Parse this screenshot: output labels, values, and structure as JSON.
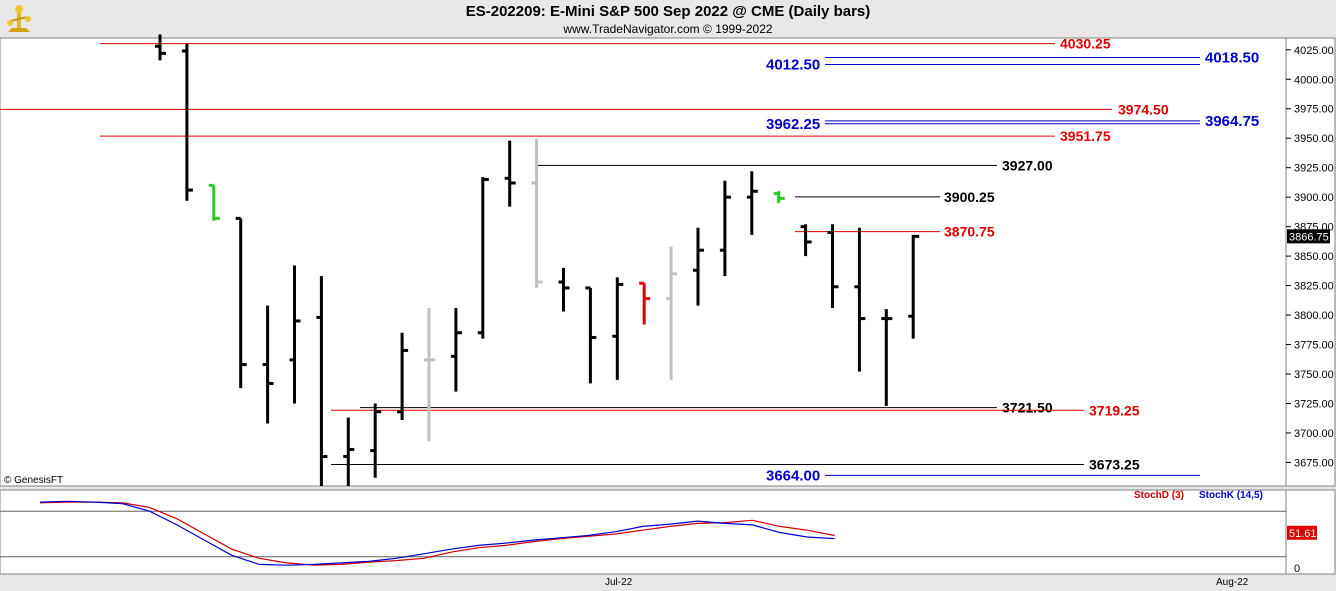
{
  "header": {
    "title": "ES-202209:  E-Mini S&P 500 Sep 2022 @ CME  (Daily bars)",
    "subtitle": "www.TradeNavigator.com © 1999-2022"
  },
  "watermark": "© GenesisFT",
  "colors": {
    "bar_default": "#000000",
    "bar_inside": "#c0c0c0",
    "bar_up_signal": "#22cc22",
    "bar_down_signal": "#dd0000",
    "level_red": "#dd0000",
    "level_blue": "#0000cc",
    "level_black": "#000000",
    "stoch_d": "#cc0000",
    "stoch_k": "#0000cc",
    "last_price_box": "#000000",
    "stoch_value_box": "#dd0000"
  },
  "chart_data": [
    {
      "type": "ohlc",
      "title": "ES-202209:  E-Mini S&P 500 Sep 2022 @ CME  (Daily bars)",
      "x_ticks": [
        "Jul-22",
        "Aug-22"
      ],
      "ylim": [
        3655,
        4035
      ],
      "y_ticks": [
        "3675.00",
        "3700.00",
        "3725.00",
        "3750.00",
        "3775.00",
        "3800.00",
        "3825.00",
        "3850.00",
        "3875.00",
        "3900.00",
        "3925.00",
        "3950.00",
        "3975.00",
        "4000.00",
        "4025.00"
      ],
      "last_price": "3866.75",
      "bars": [
        {
          "o": 4028.0,
          "h": 4038.0,
          "l": 4016.0,
          "c": 4022.0,
          "color": "black"
        },
        {
          "o": 4024.0,
          "h": 4030.0,
          "l": 3897.0,
          "c": 3906.0,
          "color": "black"
        },
        {
          "o": 3910.0,
          "h": 3910.0,
          "l": 3880.0,
          "c": 3882.0,
          "color": "green"
        },
        {
          "o": 3882.0,
          "h": 3882.0,
          "l": 3738.0,
          "c": 3758.0,
          "color": "black"
        },
        {
          "o": 3758.0,
          "h": 3808.0,
          "l": 3708.0,
          "c": 3742.0,
          "color": "black"
        },
        {
          "o": 3762.0,
          "h": 3842.0,
          "l": 3725.0,
          "c": 3795.0,
          "color": "black"
        },
        {
          "o": 3798.0,
          "h": 3833.0,
          "l": 3655.0,
          "c": 3680.0,
          "color": "black"
        },
        {
          "o": 3680.0,
          "h": 3713.0,
          "l": 3655.0,
          "c": 3686.0,
          "color": "black"
        },
        {
          "o": 3685.0,
          "h": 3725.0,
          "l": 3662.0,
          "c": 3718.0,
          "color": "black"
        },
        {
          "o": 3718.0,
          "h": 3785.0,
          "l": 3711.0,
          "c": 3770.0,
          "color": "black"
        },
        {
          "o": 3762.0,
          "h": 3806.0,
          "l": 3693.0,
          "c": 3762.0,
          "color": "gray"
        },
        {
          "o": 3765.0,
          "h": 3806.0,
          "l": 3735.0,
          "c": 3785.0,
          "color": "black"
        },
        {
          "o": 3785.0,
          "h": 3917.0,
          "l": 3780.0,
          "c": 3915.0,
          "color": "black"
        },
        {
          "o": 3916.0,
          "h": 3948.0,
          "l": 3892.0,
          "c": 3912.0,
          "color": "black"
        },
        {
          "o": 3912.0,
          "h": 3950.0,
          "l": 3823.0,
          "c": 3828.0,
          "color": "gray"
        },
        {
          "o": 3828.0,
          "h": 3840.0,
          "l": 3803.0,
          "c": 3823.0,
          "color": "black"
        },
        {
          "o": 3823.0,
          "h": 3823.0,
          "l": 3742.0,
          "c": 3781.0,
          "color": "black"
        },
        {
          "o": 3782.0,
          "h": 3832.0,
          "l": 3745.0,
          "c": 3826.0,
          "color": "black"
        },
        {
          "o": 3827.0,
          "h": 3827.0,
          "l": 3792.0,
          "c": 3814.0,
          "color": "red"
        },
        {
          "o": 3814.0,
          "h": 3858.0,
          "l": 3745.0,
          "c": 3835.0,
          "color": "gray"
        },
        {
          "o": 3838.0,
          "h": 3874.0,
          "l": 3808.0,
          "c": 3855.0,
          "color": "black"
        },
        {
          "o": 3855.0,
          "h": 3914.0,
          "l": 3833.0,
          "c": 3900.0,
          "color": "black"
        },
        {
          "o": 3900.0,
          "h": 3922.0,
          "l": 3868.0,
          "c": 3905.0,
          "color": "black"
        },
        {
          "o": 3903.0,
          "h": 3905.0,
          "l": 3895.0,
          "c": 3899.0,
          "color": "green"
        },
        {
          "o": 3875.0,
          "h": 3877.0,
          "l": 3850.0,
          "c": 3862.0,
          "color": "black"
        },
        {
          "o": 3870.0,
          "h": 3877.0,
          "l": 3806.0,
          "c": 3824.0,
          "color": "black"
        },
        {
          "o": 3824.0,
          "h": 3874.0,
          "l": 3752.0,
          "c": 3797.0,
          "color": "black"
        },
        {
          "o": 3797.0,
          "h": 3805.0,
          "l": 3723.0,
          "c": 3797.0,
          "color": "black"
        },
        {
          "o": 3799.0,
          "h": 3868.0,
          "l": 3780.0,
          "c": 3866.75,
          "color": "black"
        }
      ],
      "levels": [
        {
          "value": 4030.25,
          "label": "4030.25",
          "color": "red"
        },
        {
          "value": 4018.5,
          "label": "4018.50",
          "color": "blue"
        },
        {
          "value": 4012.5,
          "label": "4012.50",
          "color": "blue"
        },
        {
          "value": 3974.5,
          "label": "3974.50",
          "color": "red"
        },
        {
          "value": 3964.75,
          "label": "3964.75",
          "color": "blue"
        },
        {
          "value": 3962.25,
          "label": "3962.25",
          "color": "blue"
        },
        {
          "value": 3951.75,
          "label": "3951.75",
          "color": "red"
        },
        {
          "value": 3927.0,
          "label": "3927.00",
          "color": "black"
        },
        {
          "value": 3900.25,
          "label": "3900.25",
          "color": "black"
        },
        {
          "value": 3870.75,
          "label": "3870.75",
          "color": "red"
        },
        {
          "value": 3721.5,
          "label": "3721.50",
          "color": "black"
        },
        {
          "value": 3719.25,
          "label": "3719.25",
          "color": "red"
        },
        {
          "value": 3673.25,
          "label": "3673.25",
          "color": "black"
        },
        {
          "value": 3664.0,
          "label": "3664.00",
          "color": "blue"
        }
      ]
    },
    {
      "type": "line",
      "ylim": [
        0,
        100
      ],
      "y_ticks": [
        "0"
      ],
      "current_value": "51.61",
      "series": [
        {
          "name": "StochD (3)",
          "color": "red",
          "values": [
            91,
            92,
            92,
            91,
            85,
            70,
            50,
            30,
            18,
            12,
            9,
            10,
            13,
            15,
            18,
            26,
            32,
            35,
            40,
            44,
            47,
            50,
            55,
            60,
            64,
            65,
            68,
            60,
            55,
            48
          ]
        },
        {
          "name": "StochK (14,5)",
          "color": "blue",
          "values": [
            92,
            93,
            92,
            90,
            80,
            62,
            42,
            22,
            10,
            9,
            10,
            12,
            14,
            18,
            24,
            30,
            35,
            38,
            42,
            45,
            48,
            53,
            60,
            63,
            67,
            64,
            62,
            52,
            46,
            44
          ]
        }
      ]
    }
  ]
}
